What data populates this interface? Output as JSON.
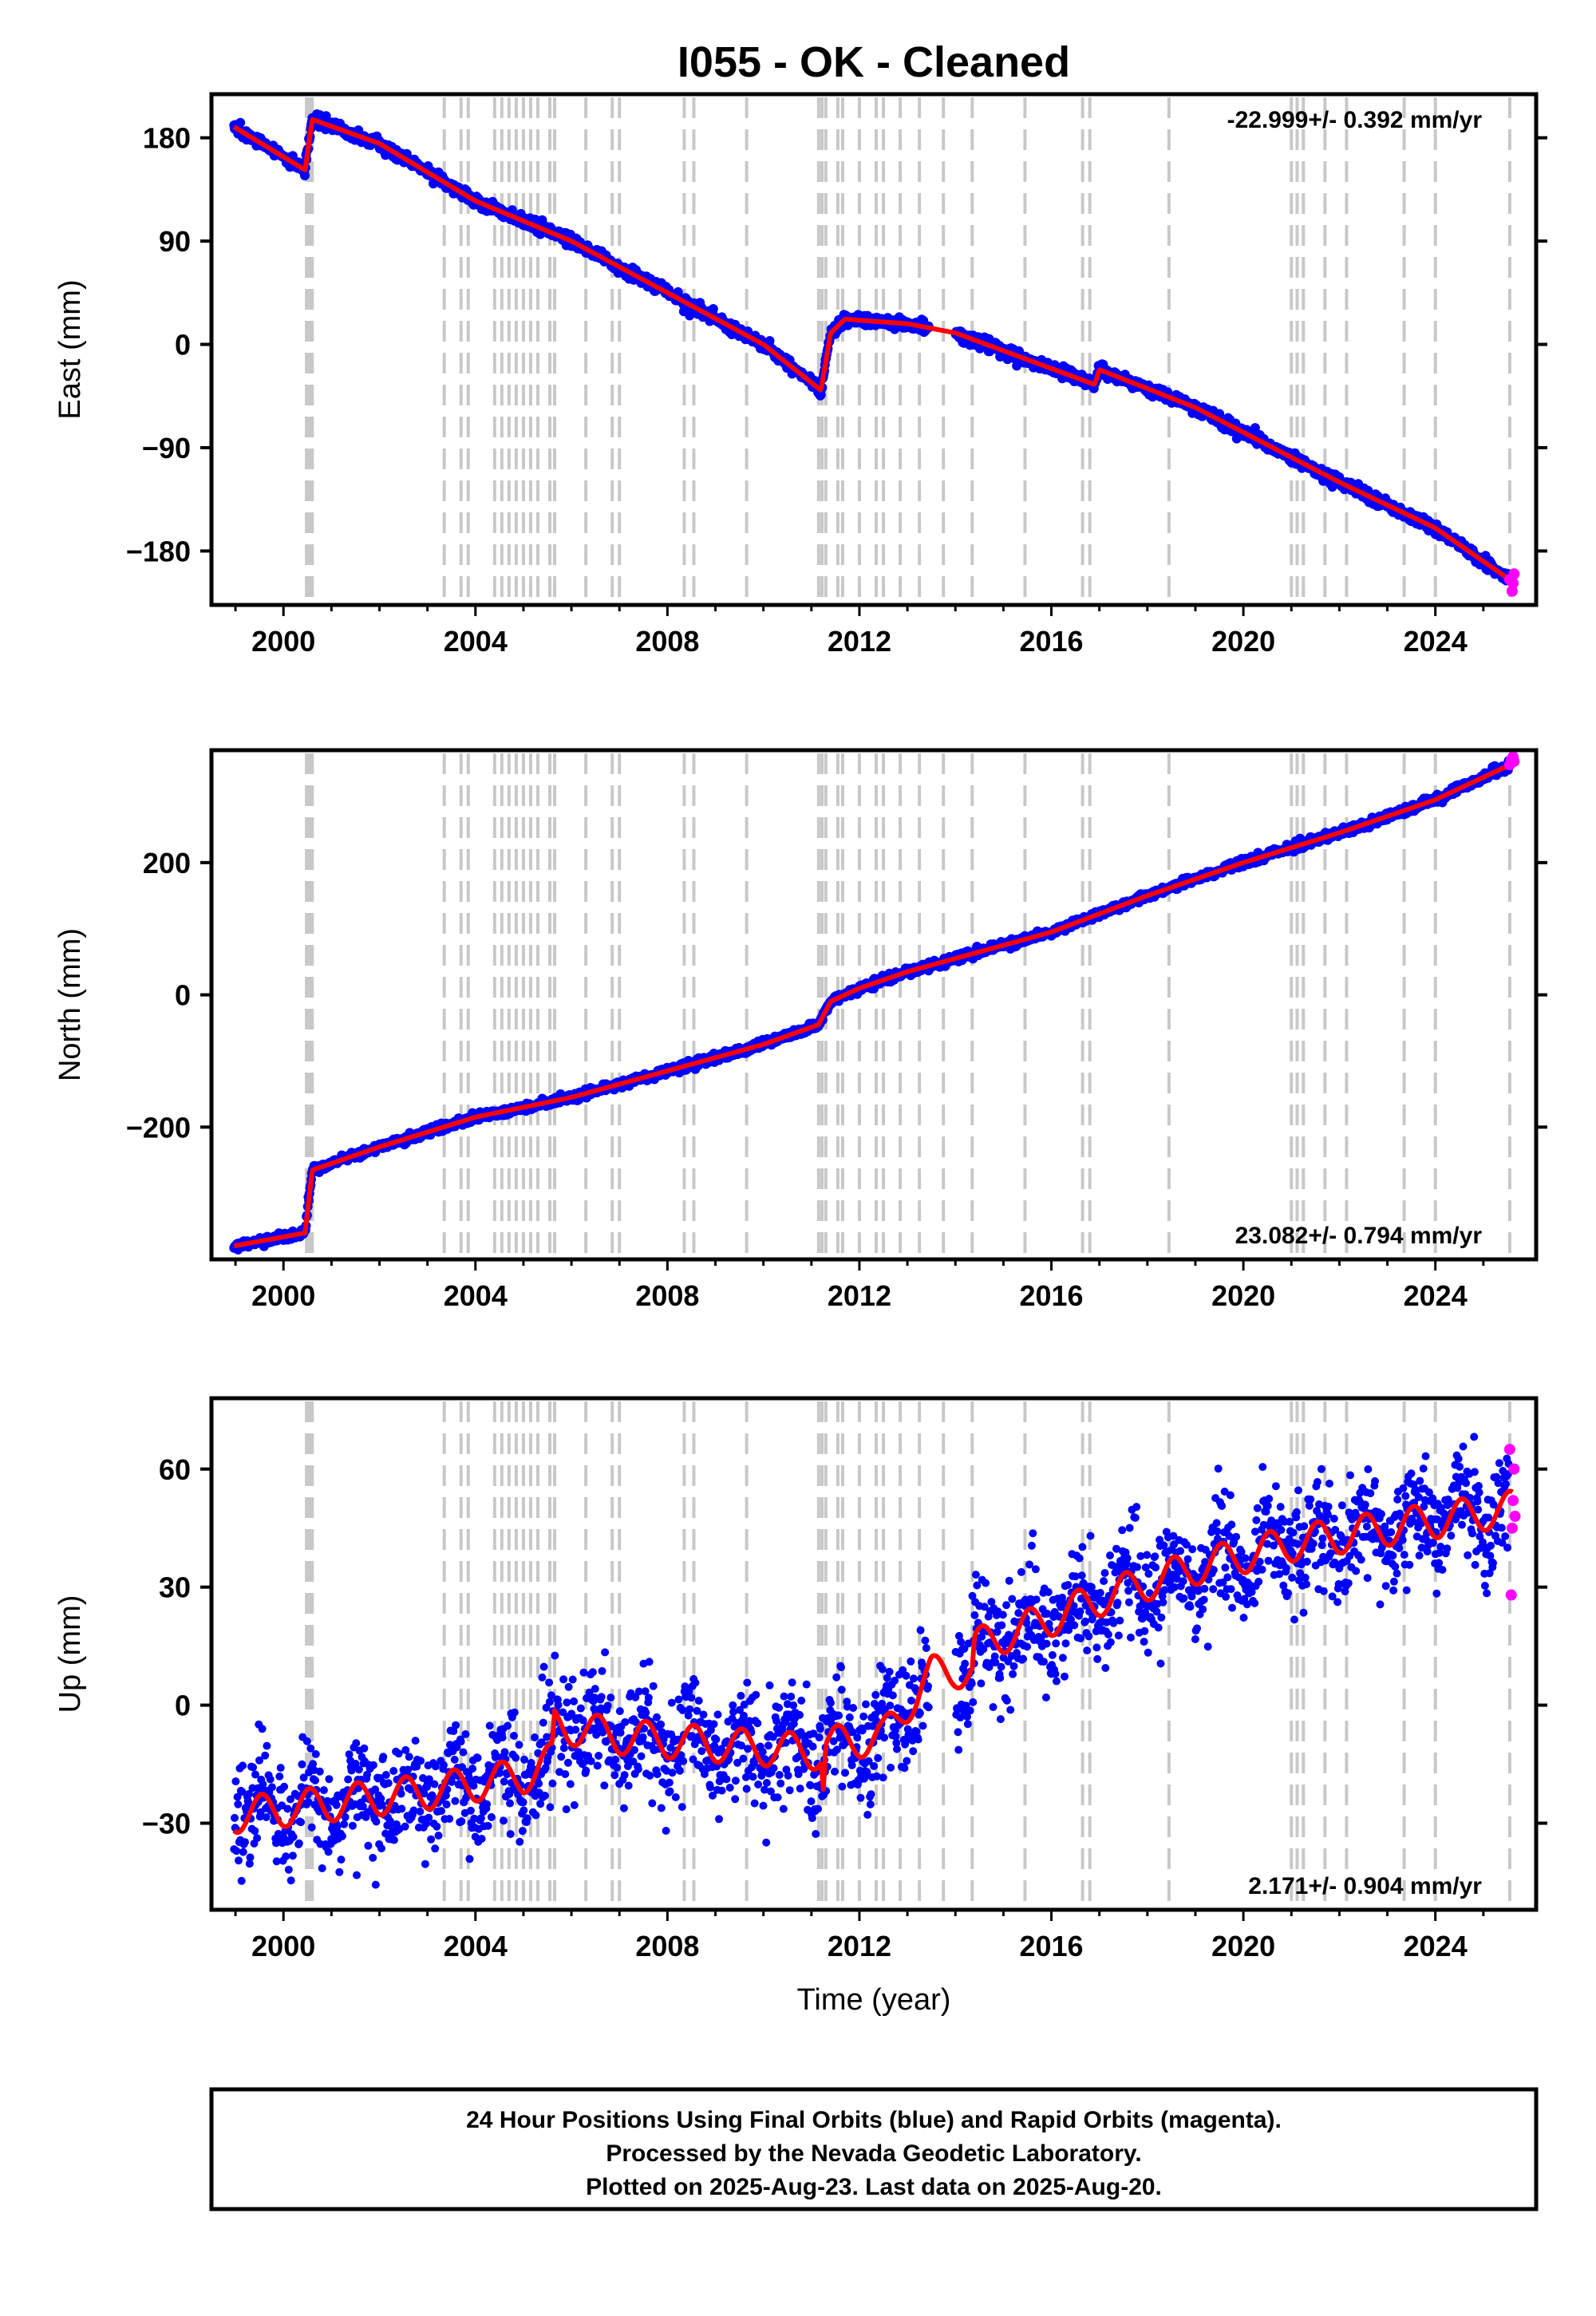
{
  "chart_data": {
    "type": "scatter",
    "title": "I055  - OK - Cleaned",
    "x_ticks": [
      2000,
      2004,
      2008,
      2012,
      2016,
      2020,
      2024
    ],
    "xlim": [
      1998.5,
      2026.1
    ],
    "xlabel": "Time (year)",
    "colors": {
      "final_points": "#0000ff",
      "rapid_points": "#ff00ff",
      "model_line": "#ff0000",
      "event_lines": "#c8c8c8",
      "frame": "#000000"
    },
    "event_epochs": [
      2000.48,
      2000.52,
      2000.56,
      2000.6,
      2003.35,
      2003.7,
      2003.85,
      2004.4,
      2004.55,
      2004.7,
      2004.85,
      2005.0,
      2005.15,
      2005.3,
      2005.55,
      2005.65,
      2006.3,
      2006.85,
      2007.0,
      2008.35,
      2008.55,
      2009.65,
      2011.15,
      2011.22,
      2011.3,
      2011.55,
      2011.65,
      2012.0,
      2012.35,
      2012.5,
      2012.85,
      2013.25,
      2013.75,
      2014.35,
      2015.45,
      2016.65,
      2016.8,
      2018.45,
      2021.0,
      2021.12,
      2021.25,
      2021.7,
      2022.15,
      2023.35,
      2024.0,
      2025.55
    ],
    "panels": [
      {
        "component": "East",
        "ylabel": "East (mm)",
        "yticks": [
          "180",
          "90",
          "0",
          "−90",
          "−180"
        ],
        "ytick_values": [
          180,
          90,
          0,
          -90,
          -180
        ],
        "ylim": [
          -227,
          218
        ],
        "rate_text": "-22.999+/- 0.392 mm/yr",
        "rate_position": "top-right",
        "scatter_sigma": 2.5,
        "model": [
          [
            1998.95,
            190
          ],
          [
            2000.45,
            152
          ],
          [
            2000.6,
            196
          ],
          [
            2002.0,
            175
          ],
          [
            2004.0,
            125
          ],
          [
            2006.0,
            90
          ],
          [
            2008.0,
            45
          ],
          [
            2010.0,
            0
          ],
          [
            2011.2,
            -40
          ],
          [
            2011.4,
            10
          ],
          [
            2011.7,
            22
          ],
          [
            2013.0,
            18
          ],
          [
            2014.0,
            10
          ],
          [
            2016.9,
            -35
          ],
          [
            2017.0,
            -22
          ],
          [
            2019.0,
            -55
          ],
          [
            2022.0,
            -120
          ],
          [
            2024.0,
            -160
          ],
          [
            2025.62,
            -207
          ]
        ],
        "rapid": [
          [
            2025.55,
            -205
          ],
          [
            2025.6,
            -215
          ],
          [
            2025.62,
            -208
          ],
          [
            2025.64,
            -200
          ]
        ]
      },
      {
        "component": "North",
        "ylabel": "North (mm)",
        "yticks": [
          "200",
          "0",
          "−200"
        ],
        "ytick_values": [
          200,
          0,
          -200
        ],
        "ylim": [
          -400,
          370
        ],
        "rate_text": "23.082+/- 0.794 mm/yr",
        "rate_position": "bottom-right",
        "scatter_sigma": 3.0,
        "model": [
          [
            1998.95,
            -380
          ],
          [
            2000.45,
            -360
          ],
          [
            2000.6,
            -265
          ],
          [
            2002.0,
            -230
          ],
          [
            2004.0,
            -185
          ],
          [
            2006.0,
            -155
          ],
          [
            2008.0,
            -115
          ],
          [
            2010.0,
            -75
          ],
          [
            2011.15,
            -45
          ],
          [
            2011.4,
            -10
          ],
          [
            2012.0,
            10
          ],
          [
            2013.0,
            35
          ],
          [
            2016.0,
            95
          ],
          [
            2018.0,
            150
          ],
          [
            2020.0,
            200
          ],
          [
            2022.0,
            245
          ],
          [
            2024.0,
            295
          ],
          [
            2025.62,
            350
          ]
        ],
        "rapid": [
          [
            2025.55,
            348
          ],
          [
            2025.58,
            355
          ],
          [
            2025.6,
            352
          ],
          [
            2025.62,
            360
          ],
          [
            2025.64,
            353
          ]
        ]
      },
      {
        "component": "Up",
        "ylabel": "Up (mm)",
        "yticks": [
          "60",
          "30",
          "0",
          "−30"
        ],
        "ytick_values": [
          60,
          30,
          0,
          -30
        ],
        "ylim": [
          -52,
          78
        ],
        "rate_text": "2.171+/- 0.904 mm/yr",
        "rate_position": "bottom-right",
        "scatter_sigma": 7.0,
        "seasonal_amplitude": 5,
        "model": [
          [
            1998.95,
            -28
          ],
          [
            2001.0,
            -25
          ],
          [
            2003.0,
            -22
          ],
          [
            2005.0,
            -18
          ],
          [
            2005.6,
            -14
          ],
          [
            2005.65,
            -5
          ],
          [
            2007.0,
            -8
          ],
          [
            2009.0,
            -10
          ],
          [
            2011.2,
            -12
          ],
          [
            2011.25,
            -20
          ],
          [
            2011.3,
            -10
          ],
          [
            2012.5,
            -8
          ],
          [
            2013.5,
            8
          ],
          [
            2014.0,
            9
          ],
          [
            2014.35,
            8
          ],
          [
            2014.4,
            15
          ],
          [
            2016.0,
            22
          ],
          [
            2017.0,
            27
          ],
          [
            2019.0,
            35
          ],
          [
            2021.0,
            41
          ],
          [
            2023.0,
            45
          ],
          [
            2025.62,
            50
          ]
        ],
        "rapid": [
          [
            2025.55,
            65
          ],
          [
            2025.58,
            28
          ],
          [
            2025.6,
            45
          ],
          [
            2025.62,
            52
          ],
          [
            2025.64,
            60
          ],
          [
            2025.66,
            48
          ]
        ]
      }
    ]
  },
  "footer": {
    "line1": "24 Hour Positions Using Final Orbits (blue) and Rapid Orbits (magenta).",
    "line2": "Processed by the Nevada Geodetic Laboratory.",
    "line3": "Plotted on 2025-Aug-23. Last data on 2025-Aug-20."
  }
}
